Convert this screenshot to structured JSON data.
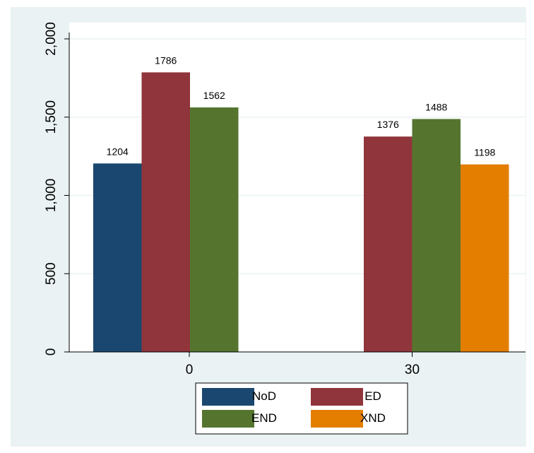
{
  "chart_data": {
    "type": "bar",
    "title": "",
    "xlabel": "",
    "ylabel": "",
    "categories": [
      "0",
      "30"
    ],
    "ylim": [
      0,
      2000
    ],
    "yticks": [
      0,
      500,
      1000,
      1500,
      2000
    ],
    "ytick_labels": [
      "0",
      "500",
      "1,000",
      "1,500",
      "2,000"
    ],
    "grid": true,
    "legend_position": "bottom",
    "series": [
      {
        "name": "NoD",
        "color": "#1a476f",
        "values": [
          1204,
          null
        ],
        "labels": [
          "1204",
          ""
        ]
      },
      {
        "name": "ED",
        "color": "#90353b",
        "values": [
          1786,
          1376
        ],
        "labels": [
          "1786",
          "1376"
        ]
      },
      {
        "name": "END",
        "color": "#55752f",
        "values": [
          1562,
          1488
        ],
        "labels": [
          "1562",
          "1488"
        ]
      },
      {
        "name": "XND",
        "color": "#e37e00",
        "values": [
          null,
          1198
        ],
        "labels": [
          "",
          "1198"
        ]
      }
    ],
    "colors": {
      "background": "#eaf2f3",
      "plot_background": "#ffffff",
      "gridline": "#eaf2f3",
      "axis": "#000000"
    }
  }
}
